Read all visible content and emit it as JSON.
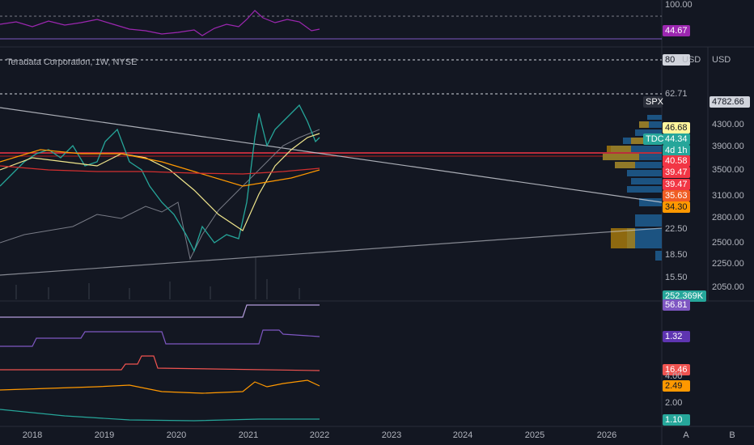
{
  "header": {
    "title": "Teradata Corporation, 1W, NYSE"
  },
  "left_scale": [
    {
      "text": "100.00"
    },
    {
      "text": "44.67",
      "color": "#9c27b0"
    },
    {
      "text": "80",
      "color": "#d1d4dc"
    },
    {
      "text": "62.71"
    },
    {
      "text": "46.68",
      "color": "#fff59d"
    },
    {
      "text": "44.34",
      "color": "#26a69a"
    },
    {
      "text": "4d 1h",
      "color": "#26a69a"
    },
    {
      "text": "40.58",
      "color": "#f23645"
    },
    {
      "text": "39.47",
      "color": "#f23645"
    },
    {
      "text": "39.47",
      "color": "#f23645"
    },
    {
      "text": "35.63",
      "color": "#f05d23"
    },
    {
      "text": "34.30",
      "color": "#ff9800"
    },
    {
      "text": "22.50"
    },
    {
      "text": "18.50"
    },
    {
      "text": "15.50"
    },
    {
      "text": "252.369K",
      "color": "#26a69a"
    },
    {
      "text": "56.81",
      "color": "#7e57c2"
    },
    {
      "text": "1.32",
      "color": "#5e35b1"
    },
    {
      "text": "16.46",
      "color": "#ef5350"
    },
    {
      "text": "4.00"
    },
    {
      "text": "2.49",
      "color": "#ff9800"
    },
    {
      "text": "2.00"
    },
    {
      "text": "1.10",
      "color": "#26a69a"
    }
  ],
  "right_scale": [
    {
      "text": "USD"
    },
    {
      "text": "4782.66",
      "color": "#d1d4dc"
    },
    {
      "text": "4300.00"
    },
    {
      "text": "3900.00"
    },
    {
      "text": "3500.00"
    },
    {
      "text": "3100.00"
    },
    {
      "text": "2800.00"
    },
    {
      "text": "2500.00"
    },
    {
      "text": "2250.00"
    },
    {
      "text": "2050.00"
    }
  ],
  "overlay_tags": [
    {
      "text": "USD"
    },
    {
      "text": "SPX",
      "color": "#2a2e39"
    },
    {
      "text": "TDC",
      "color": "#26a69a"
    }
  ],
  "time_axis": [
    "2018",
    "2019",
    "2020",
    "2021",
    "2022",
    "2023",
    "2024",
    "2025",
    "2026"
  ],
  "scale_buttons": [
    "A",
    "B"
  ]
}
